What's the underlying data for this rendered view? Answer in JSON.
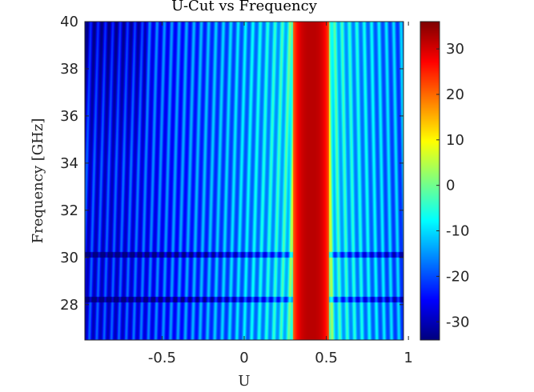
{
  "chart_data": {
    "type": "heatmap",
    "title": "U-Cut vs Frequency",
    "xlabel": "U",
    "ylabel": "Frequency [GHz]",
    "xlim": [
      -0.97,
      0.97
    ],
    "ylim": [
      26.5,
      40
    ],
    "x_ticks": [
      -0.5,
      0,
      0.5,
      1
    ],
    "x_tick_labels": [
      "-0.5",
      "0",
      "0.5",
      "1"
    ],
    "y_ticks": [
      28,
      30,
      32,
      34,
      36,
      38,
      40
    ],
    "y_tick_labels": [
      "28",
      "30",
      "32",
      "34",
      "36",
      "38",
      "40"
    ],
    "colorbar": {
      "colormap": "jet",
      "clim": [
        -34,
        36
      ],
      "ticks": [
        -30,
        -20,
        -10,
        0,
        10,
        20,
        30
      ],
      "tick_labels": [
        "-30",
        "-20",
        "-10",
        "0",
        "10",
        "20",
        "30"
      ]
    },
    "main_beam": {
      "u_center": 0.41,
      "u_halfwidth": 0.11,
      "level_db": 32
    },
    "sidelobe_ridges": {
      "count_left": 30,
      "count_right": 11,
      "spacing_u": 0.045
    },
    "discontinuities_ghz": [
      28.2,
      30.1
    ]
  }
}
